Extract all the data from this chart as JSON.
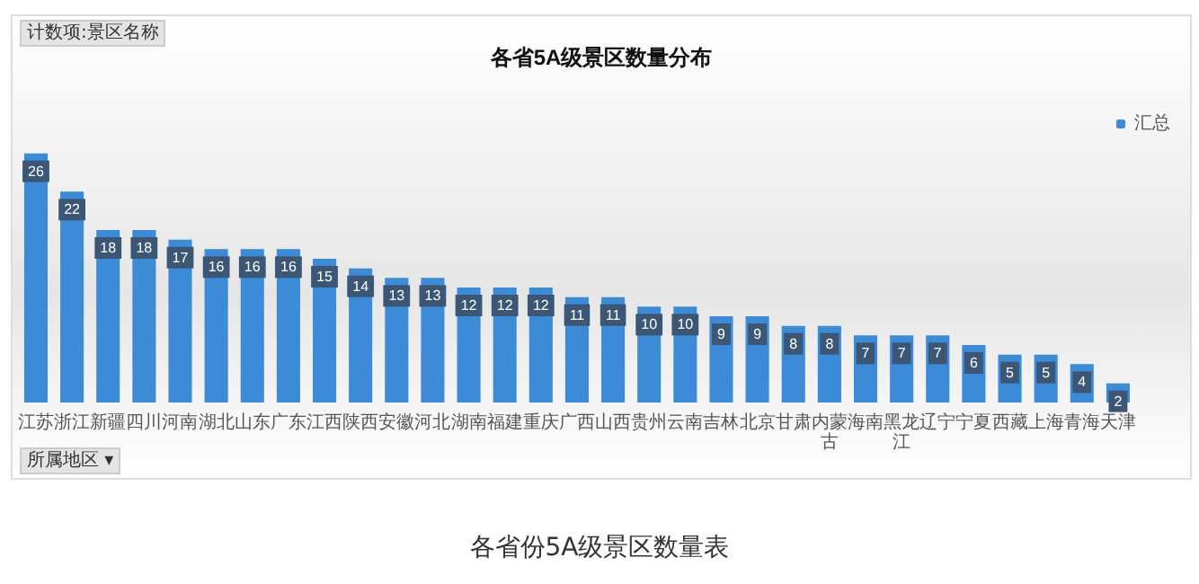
{
  "chart_data": {
    "type": "bar",
    "title": "各省5A级景区数量分布",
    "categories": [
      "江苏",
      "浙江",
      "新疆",
      "四川",
      "河南",
      "湖北",
      "山东",
      "广东",
      "江西",
      "陕西",
      "安徽",
      "河北",
      "湖南",
      "福建",
      "重庆",
      "广西",
      "山西",
      "贵州",
      "云南",
      "吉林",
      "北京",
      "甘肃",
      "内蒙古",
      "海南",
      "黑龙江",
      "辽宁",
      "宁夏",
      "西藏",
      "上海",
      "青海",
      "天津"
    ],
    "series": [
      {
        "name": "汇总",
        "color": "#3d8ad6",
        "values": [
          26,
          22,
          18,
          18,
          17,
          16,
          16,
          16,
          15,
          14,
          13,
          13,
          12,
          12,
          12,
          11,
          11,
          10,
          10,
          9,
          9,
          8,
          8,
          7,
          7,
          7,
          6,
          5,
          5,
          4,
          2
        ]
      }
    ],
    "data_labels": true,
    "legend": "top right",
    "annotations": [
      "计数项:景区名称",
      "所属地区 ▾",
      "各省份5A级景区数量表"
    ]
  }
}
